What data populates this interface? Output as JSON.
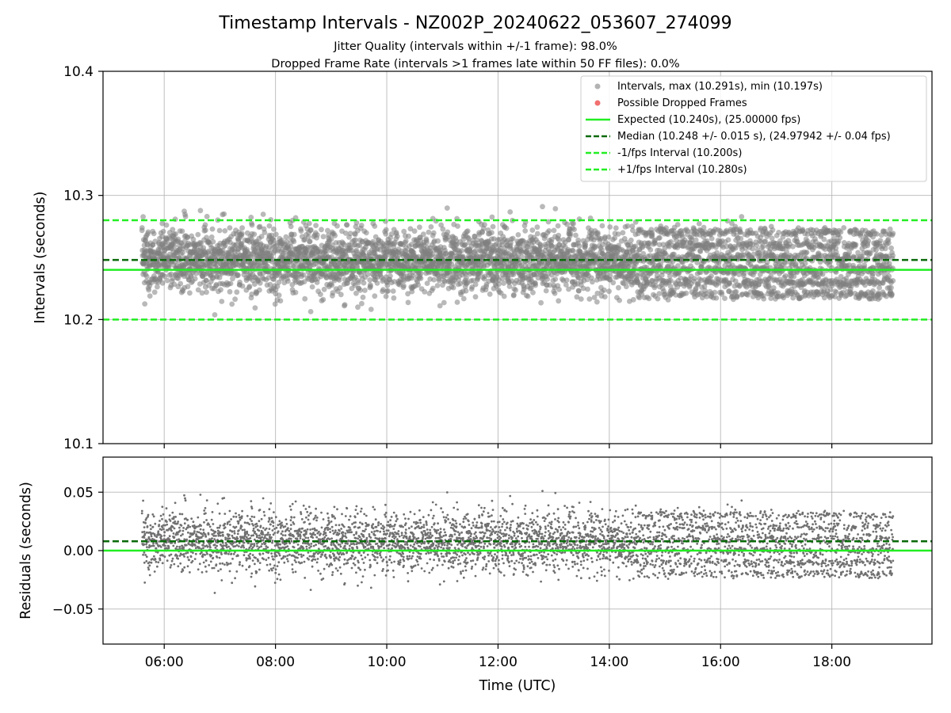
{
  "chart_data": [
    {
      "type": "scatter",
      "panel": "intervals",
      "title": "Timestamp Intervals - NZ002P_20240622_053607_274099",
      "subtitle_lines": [
        "Jitter Quality (intervals within +/-1 frame): 98.0%",
        "Dropped Frame Rate (intervals >1 frames late within 50 FF files): 0.0%"
      ],
      "ylabel": "Intervals (seconds)",
      "ylim": [
        10.1,
        10.4
      ],
      "yticks": [
        "10.1",
        "10.2",
        "10.3",
        "10.4"
      ],
      "xlim_hours": [
        4.9,
        19.8
      ],
      "x_range_hours": [
        5.6,
        19.1
      ],
      "point_count_estimate": 4750,
      "series": [
        {
          "name": "Intervals, max (10.291s), min (10.197s)",
          "kind": "scatter",
          "color": "#808080",
          "max": 10.291,
          "min": 10.197
        },
        {
          "name": "Possible Dropped Frames",
          "kind": "scatter",
          "color": "#f06060",
          "values": []
        }
      ],
      "reference_lines": [
        {
          "name": "Expected (10.240s), (25.00000 fps)",
          "value": 10.24,
          "style": "solid",
          "color": "#22ee22"
        },
        {
          "name": "Median (10.248 +/- 0.015 s), (24.97942 +/- 0.04 fps)",
          "value": 10.248,
          "style": "dashed",
          "color": "#0a6a0a"
        },
        {
          "name": "-1/fps Interval (10.200s)",
          "value": 10.2,
          "style": "dashed",
          "color": "#22ee22"
        },
        {
          "name": "+1/fps Interval (10.280s)",
          "value": 10.28,
          "style": "dashed",
          "color": "#22ee22"
        }
      ],
      "legend_position": "top-right",
      "grid": true
    },
    {
      "type": "scatter",
      "panel": "residuals",
      "ylabel": "Residuals (seconds)",
      "xlabel": "Time (UTC)",
      "ylim": [
        -0.08,
        0.08
      ],
      "yticks": [
        "−0.05",
        "0.00",
        "0.05"
      ],
      "xticks": [
        "06:00",
        "08:00",
        "10:00",
        "12:00",
        "14:00",
        "16:00",
        "18:00"
      ],
      "xtick_hours": [
        6,
        8,
        10,
        12,
        14,
        16,
        18
      ],
      "xlim_hours": [
        4.9,
        19.8
      ],
      "reference_lines": [
        {
          "value": 0.0,
          "style": "solid",
          "color": "#22ee22"
        },
        {
          "value": 0.008,
          "style": "dashed",
          "color": "#0a6a0a"
        }
      ],
      "point_color": "#707070",
      "grid": true
    }
  ]
}
